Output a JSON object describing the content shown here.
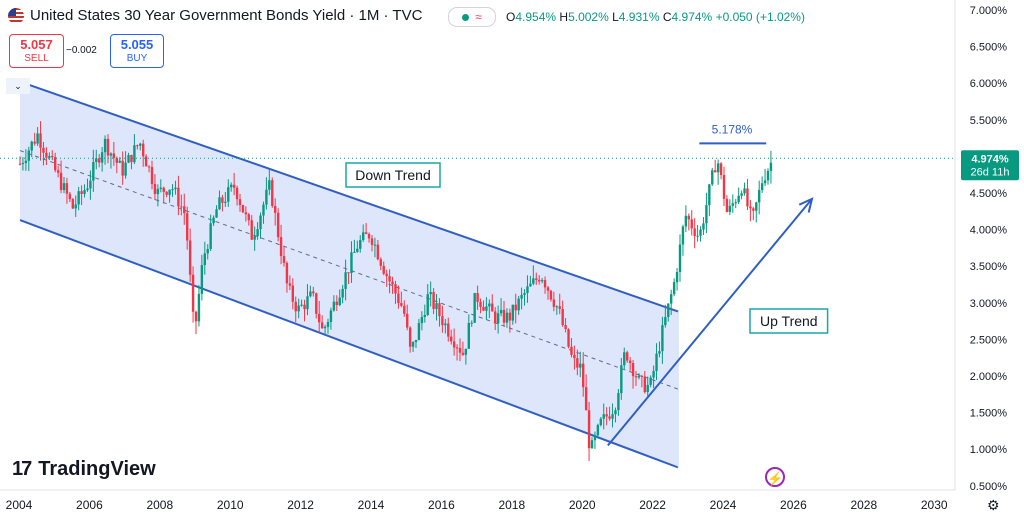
{
  "header": {
    "title": "United States 30 Year Government Bonds Yield · 1M · TVC",
    "ohlc": {
      "o_label": "O",
      "o": "4.954%",
      "h_label": "H",
      "h": "5.002%",
      "l_label": "L",
      "l": "4.931%",
      "c_label": "C",
      "c": "4.974%",
      "change": "+0.050 (+1.02%)"
    },
    "status_symbol": "≈"
  },
  "trade": {
    "sell_price": "5.057",
    "sell_label": "SELL",
    "spread": "−0.002",
    "buy_price": "5.055",
    "buy_label": "BUY"
  },
  "corner_label": "",
  "branding": {
    "logo_mark": "17",
    "logo_text": "TradingView"
  },
  "icons": {
    "bolt": "lightning-icon",
    "gear": "settings-icon",
    "flag": "us-flag-icon"
  },
  "colors": {
    "up": "#089981",
    "down": "#f23645",
    "channel_fill": "#d6e0fb",
    "line": "#2f5fc4",
    "price_label": "#089981"
  },
  "chart_data": {
    "type": "candlestick",
    "title": "United States 30 Year Government Bonds Yield",
    "x_ticks": [
      "2004",
      "2006",
      "2008",
      "2010",
      "2012",
      "2014",
      "2016",
      "2018",
      "2020",
      "2022",
      "2024",
      "2026",
      "2028",
      "2030"
    ],
    "y_ticks": [
      "7.000%",
      "6.500%",
      "6.000%",
      "5.500%",
      "5.000%",
      "4.500%",
      "4.000%",
      "3.500%",
      "3.000%",
      "2.500%",
      "2.000%",
      "1.500%",
      "1.000%",
      "0.500%"
    ],
    "ylim": [
      0.5,
      7.0
    ],
    "xlim": [
      2004.0,
      2031.6
    ],
    "current_price": {
      "value": 4.974,
      "label": "4.974%",
      "countdown": "26d 11h"
    },
    "annotations": [
      {
        "text": "Down Trend",
        "at": [
          2013.1,
          4.75
        ]
      },
      {
        "text": "Up Trend",
        "at": [
          2025.8,
          2.75
        ]
      },
      {
        "text": "5.178%",
        "value": 5.178
      }
    ],
    "drawings": {
      "down_channel": {
        "upper": [
          [
            2004.0,
            6.02
          ],
          [
            2022.7,
            2.88
          ]
        ],
        "lower": [
          [
            2004.0,
            4.13
          ],
          [
            2022.7,
            0.75
          ]
        ],
        "mid": [
          [
            2004.0,
            5.08
          ],
          [
            2022.7,
            1.82
          ]
        ]
      },
      "up_trend_line": [
        [
          2020.7,
          1.05
        ],
        [
          2026.5,
          4.42
        ]
      ],
      "resistance_line": {
        "value": 5.178,
        "x": [
          2023.3,
          2025.2
        ]
      }
    },
    "series_points": [
      [
        2004.0,
        4.9
      ],
      [
        2004.5,
        5.3
      ],
      [
        2005.0,
        4.8
      ],
      [
        2005.5,
        4.3
      ],
      [
        2005.9,
        4.6
      ],
      [
        2006.4,
        5.2
      ],
      [
        2006.9,
        4.8
      ],
      [
        2007.4,
        5.2
      ],
      [
        2007.9,
        4.5
      ],
      [
        2008.3,
        4.6
      ],
      [
        2008.7,
        4.2
      ],
      [
        2008.95,
        2.55
      ],
      [
        2009.2,
        3.6
      ],
      [
        2009.6,
        4.3
      ],
      [
        2010.1,
        4.6
      ],
      [
        2010.6,
        3.9
      ],
      [
        2011.1,
        4.6
      ],
      [
        2011.6,
        3.2
      ],
      [
        2011.9,
        2.9
      ],
      [
        2012.3,
        3.1
      ],
      [
        2012.6,
        2.6
      ],
      [
        2013.1,
        3.2
      ],
      [
        2013.6,
        3.8
      ],
      [
        2013.95,
        3.95
      ],
      [
        2014.4,
        3.4
      ],
      [
        2014.9,
        2.9
      ],
      [
        2015.1,
        2.3
      ],
      [
        2015.6,
        3.1
      ],
      [
        2016.2,
        2.6
      ],
      [
        2016.6,
        2.3
      ],
      [
        2016.95,
        3.1
      ],
      [
        2017.5,
        2.8
      ],
      [
        2017.9,
        2.8
      ],
      [
        2018.3,
        3.1
      ],
      [
        2018.8,
        3.4
      ],
      [
        2019.3,
        2.9
      ],
      [
        2019.7,
        2.2
      ],
      [
        2019.95,
        2.1
      ],
      [
        2020.2,
        0.95
      ],
      [
        2020.5,
        1.35
      ],
      [
        2020.9,
        1.6
      ],
      [
        2021.2,
        2.35
      ],
      [
        2021.6,
        1.9
      ],
      [
        2021.9,
        1.85
      ],
      [
        2022.2,
        2.5
      ],
      [
        2022.6,
        3.3
      ],
      [
        2022.9,
        4.2
      ],
      [
        2023.3,
        3.9
      ],
      [
        2023.8,
        5.0
      ],
      [
        2024.1,
        4.2
      ],
      [
        2024.5,
        4.6
      ],
      [
        2024.8,
        4.1
      ],
      [
        2025.1,
        4.7
      ],
      [
        2025.4,
        4.97
      ]
    ]
  }
}
